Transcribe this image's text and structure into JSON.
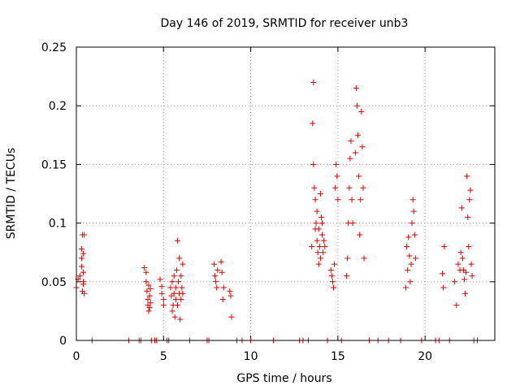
{
  "chart_data": {
    "type": "scatter",
    "title": "Day 146 of 2019, SRMTID for receiver unb3",
    "xlabel": "GPS time / hours",
    "ylabel": "SRMTID / TECUs",
    "xlim": [
      0,
      24
    ],
    "ylim": [
      0,
      0.25
    ],
    "xticks": [
      0,
      5,
      10,
      15,
      20
    ],
    "xtick_labels": [
      "0",
      "5",
      "10",
      "15",
      "20"
    ],
    "yticks": [
      0,
      0.05,
      0.1,
      0.15,
      0.2,
      0.25
    ],
    "ytick_labels": [
      "0",
      "0.05",
      "0.1",
      "0.15",
      "0.2",
      "0.25"
    ],
    "grid": true,
    "marker": "+",
    "color": "#e00000",
    "series": [
      {
        "name": "SRMTID",
        "x": [
          0.0,
          0.1,
          0.2,
          0.3,
          0.3,
          0.3,
          0.35,
          0.35,
          0.4,
          0.4,
          0.4,
          0.4,
          0.45,
          0.45,
          3.9,
          4.0,
          4.0,
          4.05,
          4.1,
          4.1,
          4.15,
          4.15,
          4.2,
          4.2,
          4.25,
          4.25,
          4.8,
          4.9,
          4.9,
          5.0,
          5.0,
          5.4,
          5.45,
          5.5,
          5.5,
          5.55,
          5.6,
          5.6,
          5.65,
          5.7,
          5.7,
          5.75,
          5.8,
          5.8,
          5.85,
          5.9,
          5.9,
          5.95,
          6.0,
          6.0,
          6.05,
          6.1,
          6.1,
          7.9,
          7.95,
          8.0,
          8.05,
          8.1,
          8.3,
          8.35,
          8.4,
          8.45,
          8.8,
          8.85,
          8.9,
          13.5,
          13.55,
          13.6,
          13.6,
          13.65,
          13.7,
          13.7,
          13.75,
          13.8,
          13.8,
          13.85,
          13.9,
          13.9,
          13.95,
          14.0,
          14.0,
          14.05,
          14.1,
          14.1,
          14.15,
          14.2,
          14.25,
          14.6,
          14.65,
          14.7,
          14.75,
          14.8,
          14.85,
          14.9,
          14.95,
          15.0,
          15.5,
          15.55,
          15.6,
          15.65,
          15.7,
          15.75,
          15.8,
          15.85,
          16.0,
          16.05,
          16.1,
          16.15,
          16.2,
          16.25,
          16.3,
          16.35,
          16.4,
          16.45,
          16.5,
          18.9,
          18.95,
          19.0,
          19.05,
          19.1,
          19.15,
          19.2,
          19.25,
          19.3,
          19.35,
          19.4,
          19.45,
          21.0,
          21.05,
          21.1,
          21.7,
          21.8,
          21.9,
          22.0,
          22.05,
          22.1,
          22.15,
          22.2,
          22.25,
          22.3,
          22.35,
          22.4,
          22.45,
          22.5,
          22.55,
          22.6,
          22.65,
          22.7,
          0.9,
          3.0,
          3.6,
          3.7,
          4.3,
          4.5,
          4.6,
          5.2,
          5.3,
          6.5,
          7.5,
          7.6,
          9.2,
          9.5,
          10.0,
          11.3,
          12.8,
          13.0,
          13.3,
          14.4,
          15.2,
          16.8,
          17.3,
          17.9,
          18.6,
          19.8,
          20.6,
          20.8,
          21.4,
          22.8,
          23.0
        ],
        "y": [
          0.045,
          0.052,
          0.055,
          0.063,
          0.07,
          0.078,
          0.09,
          0.042,
          0.05,
          0.058,
          0.074,
          0.048,
          0.09,
          0.04,
          0.062,
          0.058,
          0.05,
          0.042,
          0.035,
          0.03,
          0.047,
          0.025,
          0.028,
          0.038,
          0.044,
          0.032,
          0.052,
          0.04,
          0.046,
          0.035,
          0.03,
          0.045,
          0.038,
          0.025,
          0.05,
          0.03,
          0.04,
          0.055,
          0.02,
          0.035,
          0.045,
          0.06,
          0.085,
          0.03,
          0.05,
          0.04,
          0.07,
          0.018,
          0.035,
          0.055,
          0.045,
          0.04,
          0.065,
          0.065,
          0.055,
          0.05,
          0.045,
          0.06,
          0.067,
          0.058,
          0.035,
          0.045,
          0.042,
          0.038,
          0.02,
          0.08,
          0.185,
          0.22,
          0.15,
          0.13,
          0.12,
          0.095,
          0.1,
          0.11,
          0.085,
          0.075,
          0.065,
          0.095,
          0.08,
          0.07,
          0.125,
          0.105,
          0.09,
          0.1,
          0.075,
          0.085,
          0.08,
          0.06,
          0.055,
          0.05,
          0.045,
          0.065,
          0.13,
          0.15,
          0.14,
          0.12,
          0.055,
          0.07,
          0.1,
          0.13,
          0.155,
          0.17,
          0.12,
          0.1,
          0.16,
          0.215,
          0.2,
          0.175,
          0.14,
          0.09,
          0.12,
          0.195,
          0.165,
          0.13,
          0.07,
          0.045,
          0.08,
          0.06,
          0.088,
          0.072,
          0.05,
          0.065,
          0.1,
          0.12,
          0.11,
          0.09,
          0.07,
          0.057,
          0.045,
          0.08,
          0.05,
          0.03,
          0.065,
          0.06,
          0.075,
          0.113,
          0.07,
          0.06,
          0.052,
          0.04,
          0.058,
          0.14,
          0.105,
          0.08,
          0.12,
          0.128,
          0.065,
          0.055,
          0,
          0,
          0,
          0,
          0,
          0,
          0,
          0,
          0,
          0,
          0,
          0,
          0,
          0,
          0,
          0,
          0,
          0,
          0,
          0,
          0,
          0,
          0,
          0,
          0,
          0,
          0,
          0,
          0,
          0,
          0
        ]
      }
    ]
  }
}
